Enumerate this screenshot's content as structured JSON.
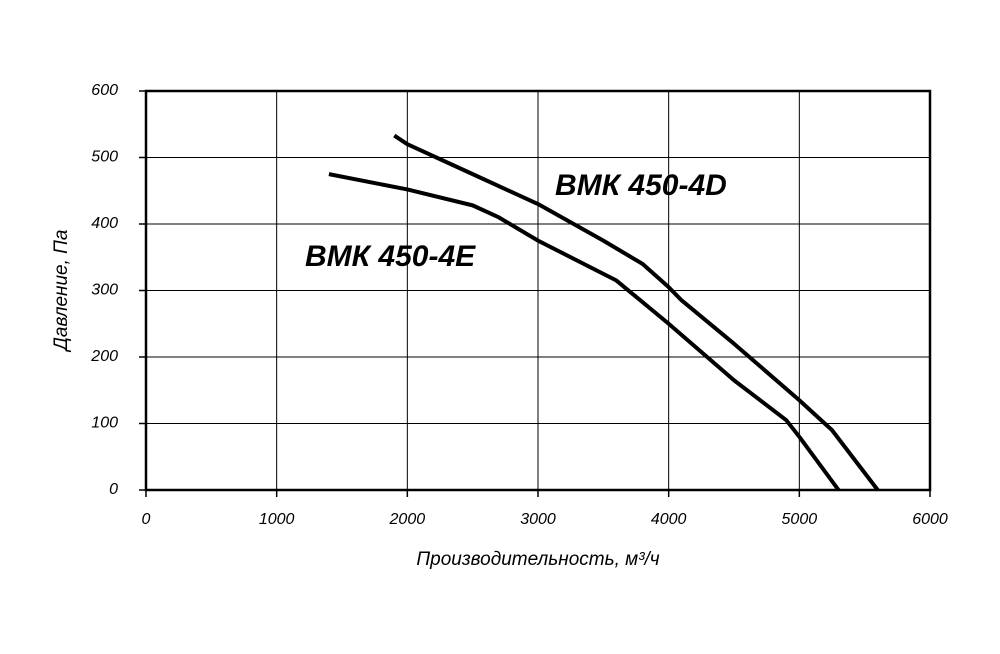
{
  "chart_data": {
    "type": "line",
    "x_label": "Производительность, м³/ч",
    "y_label": "Давление, Па",
    "series": [
      {
        "name": "ВМК 450-4D",
        "color": "#000000",
        "x": [
          1900,
          2000,
          2500,
          3000,
          3500,
          3800,
          4000,
          4100,
          4500,
          5000,
          5250,
          5600
        ],
        "values": [
          533,
          520,
          475,
          430,
          375,
          340,
          305,
          285,
          220,
          135,
          90,
          0
        ]
      },
      {
        "name": "ВМК 450-4E",
        "color": "#000000",
        "x": [
          1400,
          2000,
          2500,
          2700,
          3000,
          3600,
          4000,
          4500,
          4900,
          5000,
          5300
        ],
        "values": [
          475,
          452,
          428,
          410,
          375,
          315,
          250,
          165,
          105,
          80,
          0
        ]
      }
    ],
    "xlim": [
      0,
      6000
    ],
    "xticks": [
      0,
      1000,
      2000,
      3000,
      4000,
      5000,
      6000
    ],
    "ylim": [
      0,
      600
    ],
    "yticks": [
      0,
      100,
      200,
      300,
      400,
      500,
      600
    ],
    "grid": true
  }
}
